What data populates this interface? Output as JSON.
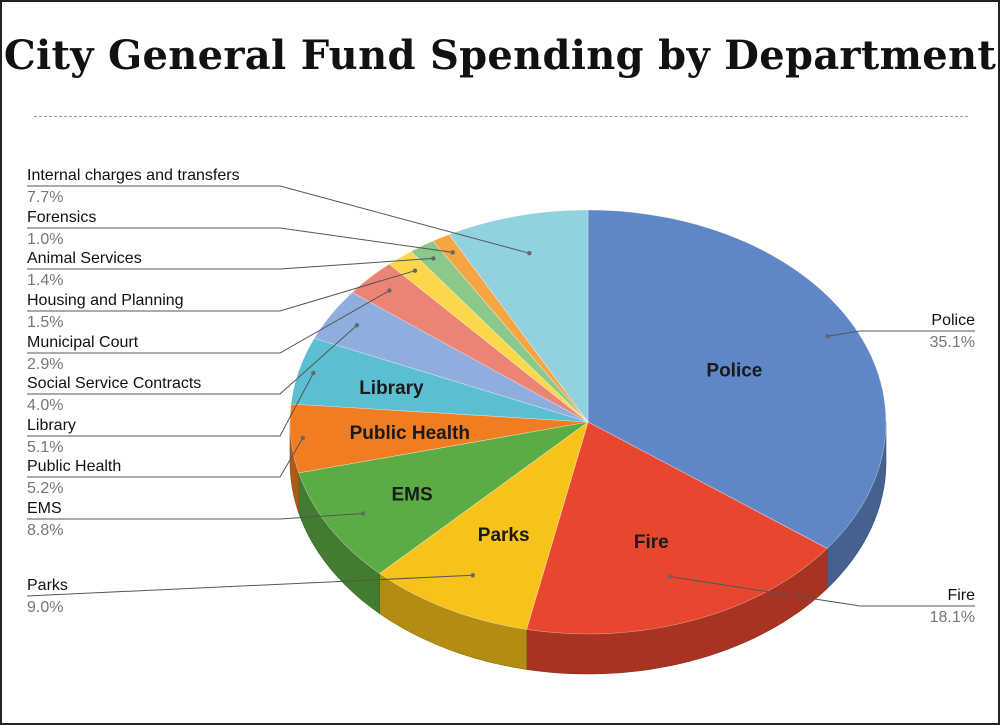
{
  "title": "City General Fund Spending by Department",
  "chart_data": {
    "type": "pie",
    "title": "City General Fund Spending by Department",
    "three_d": true,
    "slices": [
      {
        "label": "Police",
        "value": 35.1,
        "value_label": "35.1%",
        "color": "#5f87c8",
        "inner_label": "Police"
      },
      {
        "label": "Fire",
        "value": 18.1,
        "value_label": "18.1%",
        "color": "#e8472f",
        "inner_label": "Fire"
      },
      {
        "label": "Parks",
        "value": 9.0,
        "value_label": "9.0%",
        "color": "#f7c31a",
        "inner_label": "Parks"
      },
      {
        "label": "EMS",
        "value": 8.8,
        "value_label": "8.8%",
        "color": "#5bac44",
        "inner_label": "EMS"
      },
      {
        "label": "Public Health",
        "value": 5.2,
        "value_label": "5.2%",
        "color": "#f07d21",
        "inner_label": "Public Health"
      },
      {
        "label": "Library",
        "value": 5.1,
        "value_label": "5.1%",
        "color": "#5bbfd2",
        "inner_label": "Library"
      },
      {
        "label": "Social Service Contracts",
        "value": 4.0,
        "value_label": "4.0%",
        "color": "#8faedd",
        "inner_label": ""
      },
      {
        "label": "Municipal Court",
        "value": 2.9,
        "value_label": "2.9%",
        "color": "#eb8475",
        "inner_label": ""
      },
      {
        "label": "Housing and Planning",
        "value": 1.5,
        "value_label": "1.5%",
        "color": "#fbd84b",
        "inner_label": ""
      },
      {
        "label": "Animal Services",
        "value": 1.4,
        "value_label": "1.4%",
        "color": "#8bc98a",
        "inner_label": ""
      },
      {
        "label": "Forensics",
        "value": 1.0,
        "value_label": "1.0%",
        "color": "#f5a542",
        "inner_label": ""
      },
      {
        "label": "Internal charges and transfers",
        "value": 7.7,
        "value_label": "7.7%",
        "color": "#92d1e0",
        "inner_label": ""
      }
    ]
  }
}
